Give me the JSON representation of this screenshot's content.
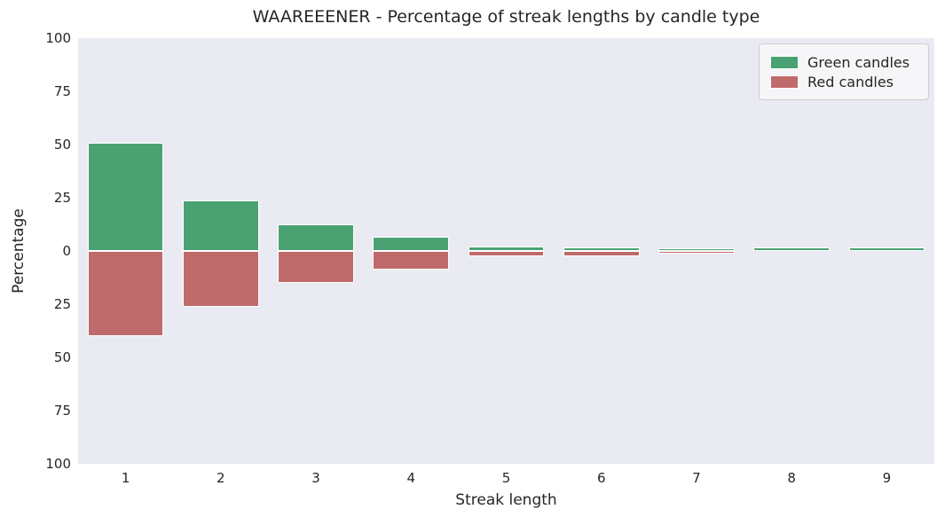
{
  "chart_data": {
    "type": "bar",
    "variant": "diverging-mirrored",
    "title": "WAAREEENER - Percentage of streak lengths by candle type",
    "xlabel": "Streak length",
    "ylabel": "Percentage",
    "categories": [
      "1",
      "2",
      "3",
      "4",
      "5",
      "6",
      "7",
      "8",
      "9"
    ],
    "series": [
      {
        "name": "Green candles",
        "color": "#4aa273",
        "direction": "up",
        "values": [
          50.9,
          23.8,
          12.6,
          6.8,
          1.9,
          1.8,
          1.3,
          1.5,
          1.6
        ]
      },
      {
        "name": "Red candles",
        "color": "#bf6a6b",
        "direction": "down",
        "values": [
          40.1,
          26.3,
          15.1,
          8.9,
          2.5,
          2.4,
          1.1,
          0,
          0
        ]
      }
    ],
    "y_tick_labels": [
      "100",
      "75",
      "50",
      "25",
      "0",
      "25",
      "50",
      "75",
      "100"
    ],
    "ylim": [
      -100,
      100
    ],
    "grid": false,
    "legend_position": "upper right",
    "colors": {
      "plot_background": "#eaeaf2",
      "figure_background": "#ffffff",
      "bar_edge": "#ffffff",
      "text": "#262626"
    }
  }
}
